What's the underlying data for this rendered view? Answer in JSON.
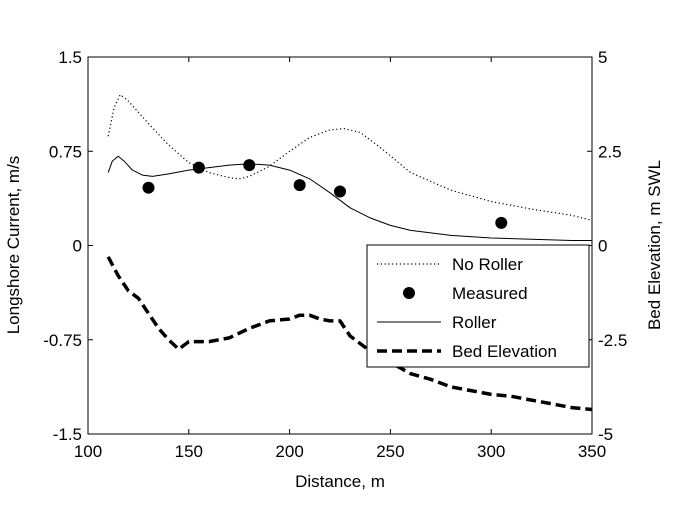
{
  "chart_data": {
    "type": "line",
    "title": "",
    "xlabel": "Distance, m",
    "ylabel": "Longshore Current, m/s",
    "y2label": "Bed Elevation, m SWL",
    "xlim": [
      100,
      350
    ],
    "ylim": [
      -1.5,
      1.5
    ],
    "y2lim": [
      -5,
      5
    ],
    "xticks": [
      100,
      150,
      200,
      250,
      300,
      350
    ],
    "yticks": [
      -1.5,
      -0.75,
      0,
      0.75,
      1.5
    ],
    "y2ticks": [
      -5,
      -2.5,
      0,
      2.5,
      5
    ],
    "xtick_labels": [
      "100",
      "150",
      "200",
      "250",
      "300",
      "350"
    ],
    "ytick_labels": [
      "-1.5",
      "-0.75",
      "0",
      "0.75",
      "1.5"
    ],
    "y2tick_labels": [
      "-5",
      "-2.5",
      "0",
      "2.5",
      "5"
    ],
    "grid": false,
    "legend_position": "lower-right",
    "series": [
      {
        "name": "No Roller",
        "style": "dotted",
        "axis": "left",
        "x": [
          110,
          113,
          116,
          120,
          130,
          140,
          150,
          160,
          170,
          175,
          180,
          190,
          200,
          210,
          220,
          227,
          235,
          245,
          260,
          280,
          300,
          320,
          340,
          350
        ],
        "y": [
          0.87,
          1.1,
          1.2,
          1.15,
          0.97,
          0.8,
          0.66,
          0.58,
          0.54,
          0.53,
          0.55,
          0.63,
          0.75,
          0.86,
          0.92,
          0.93,
          0.9,
          0.78,
          0.58,
          0.44,
          0.35,
          0.29,
          0.24,
          0.2
        ]
      },
      {
        "name": "Measured",
        "style": "markers",
        "axis": "left",
        "x": [
          130,
          155,
          180,
          205,
          225,
          305
        ],
        "y": [
          0.46,
          0.62,
          0.64,
          0.48,
          0.43,
          0.18
        ]
      },
      {
        "name": "Roller",
        "style": "solid",
        "axis": "left",
        "x": [
          110,
          112,
          115,
          118,
          122,
          127,
          132,
          140,
          150,
          160,
          170,
          180,
          190,
          200,
          210,
          220,
          230,
          240,
          250,
          260,
          280,
          300,
          320,
          340,
          350
        ],
        "y": [
          0.58,
          0.67,
          0.71,
          0.67,
          0.6,
          0.56,
          0.55,
          0.57,
          0.6,
          0.62,
          0.64,
          0.65,
          0.64,
          0.6,
          0.53,
          0.42,
          0.3,
          0.22,
          0.16,
          0.12,
          0.08,
          0.06,
          0.05,
          0.04,
          0.04
        ]
      },
      {
        "name": "Bed Elevation",
        "style": "dashed",
        "axis": "right",
        "x": [
          110,
          115,
          120,
          125,
          130,
          135,
          140,
          145,
          150,
          160,
          170,
          180,
          190,
          200,
          205,
          210,
          215,
          220,
          225,
          230,
          240,
          250,
          260,
          270,
          280,
          290,
          300,
          310,
          320,
          330,
          340,
          350
        ],
        "y": [
          -0.3,
          -0.8,
          -1.2,
          -1.4,
          -1.8,
          -2.2,
          -2.5,
          -2.75,
          -2.55,
          -2.55,
          -2.45,
          -2.2,
          -2.0,
          -1.95,
          -1.85,
          -1.85,
          -1.95,
          -2.0,
          -2.0,
          -2.4,
          -2.8,
          -3.1,
          -3.4,
          -3.55,
          -3.75,
          -3.85,
          -3.95,
          -4.0,
          -4.1,
          -4.2,
          -4.3,
          -4.35
        ]
      }
    ]
  }
}
